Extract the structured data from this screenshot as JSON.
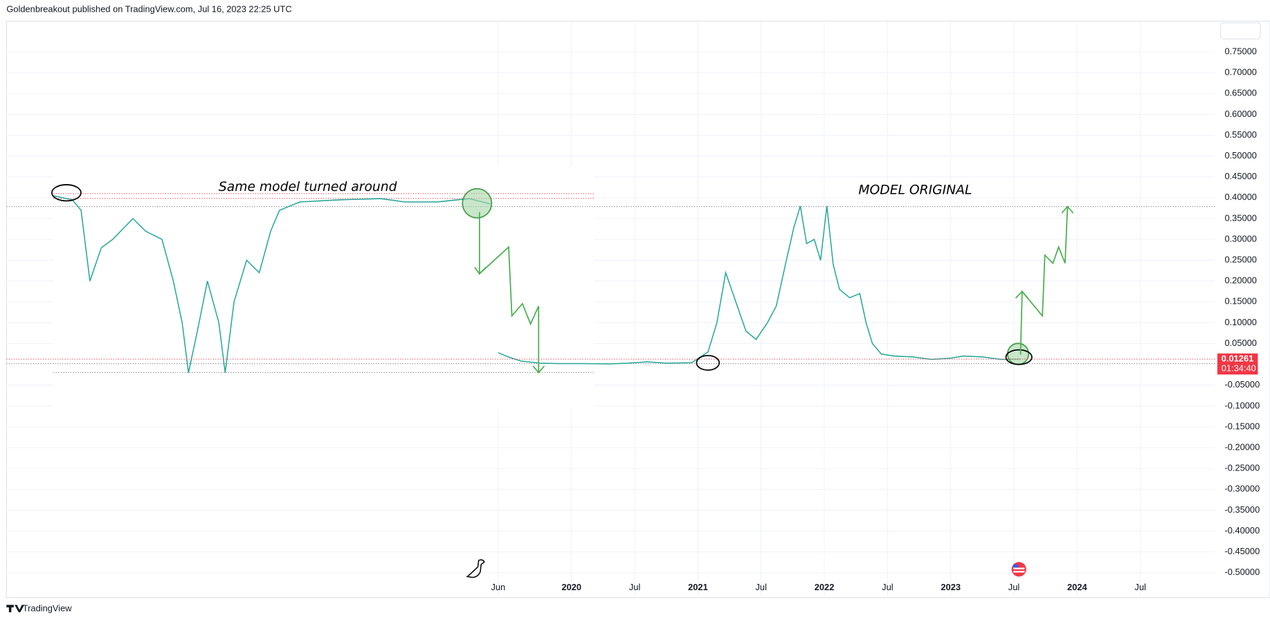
{
  "header": "Goldenbreakout published on TradingView.com, Jul 16, 2023 22:25 UTC",
  "footer": "TradingView",
  "chart_data": {
    "type": "line",
    "annotations": [
      "Same model turned around",
      "MODEL ORIGINAL"
    ],
    "last_price": 0.01261,
    "countdown": "01:34:40",
    "price_label_color": "#f23645",
    "grid": true,
    "xlim": [
      2015.53,
      2025.09
    ],
    "ylim": [
      -0.558,
      0.824
    ],
    "xticks": [
      {
        "value": 2019.42,
        "label": "Jun"
      },
      {
        "value": 2020,
        "label": "2020"
      },
      {
        "value": 2020.5,
        "label": "Jul"
      },
      {
        "value": 2021,
        "label": "2021"
      },
      {
        "value": 2021.5,
        "label": "Jul"
      },
      {
        "value": 2022,
        "label": "2022"
      },
      {
        "value": 2022.5,
        "label": "Jul"
      },
      {
        "value": 2023,
        "label": "2023"
      },
      {
        "value": 2023.5,
        "label": "Jul"
      },
      {
        "value": 2024,
        "label": "2024"
      },
      {
        "value": 2024.5,
        "label": "Jul"
      }
    ],
    "yticks": [
      {
        "value": 0.75,
        "label": "0.75000"
      },
      {
        "value": 0.7,
        "label": "0.70000"
      },
      {
        "value": 0.65,
        "label": "0.65000"
      },
      {
        "value": 0.6,
        "label": "0.60000"
      },
      {
        "value": 0.55,
        "label": "0.55000"
      },
      {
        "value": 0.5,
        "label": "0.50000"
      },
      {
        "value": 0.45,
        "label": "0.45000"
      },
      {
        "value": 0.4,
        "label": "0.40000"
      },
      {
        "value": 0.35,
        "label": "0.35000"
      },
      {
        "value": 0.3,
        "label": "0.30000"
      },
      {
        "value": 0.25,
        "label": "0.25000"
      },
      {
        "value": 0.2,
        "label": "0.20000"
      },
      {
        "value": 0.15,
        "label": "0.15000"
      },
      {
        "value": 0.1,
        "label": "0.10000"
      },
      {
        "value": 0.05,
        "label": "0.05000"
      },
      {
        "value": -0.05,
        "label": "-0.05000"
      },
      {
        "value": -0.1,
        "label": "-0.10000"
      },
      {
        "value": -0.15,
        "label": "-0.15000"
      },
      {
        "value": -0.2,
        "label": "-0.20000"
      },
      {
        "value": -0.25,
        "label": "-0.25000"
      },
      {
        "value": -0.3,
        "label": "-0.30000"
      },
      {
        "value": -0.35,
        "label": "-0.35000"
      },
      {
        "value": -0.4,
        "label": "-0.40000"
      },
      {
        "value": -0.45,
        "label": "-0.45000"
      },
      {
        "value": -0.5,
        "label": "-0.50000"
      }
    ],
    "series": [
      {
        "color": "#26a69a",
        "x": [
          2019.42,
          2019.5,
          2019.6,
          2019.75,
          2019.9,
          2020.1,
          2020.3,
          2020.45,
          2020.6,
          2020.75,
          2020.95,
          2021.08,
          2021.15,
          2021.22,
          2021.3,
          2021.38,
          2021.46,
          2021.55,
          2021.62,
          2021.7,
          2021.76,
          2021.81,
          2021.86,
          2021.92,
          2021.97,
          2022.02,
          2022.07,
          2022.12,
          2022.2,
          2022.28,
          2022.33,
          2022.38,
          2022.45,
          2022.55,
          2022.7,
          2022.85,
          2023.0,
          2023.1,
          2023.25,
          2023.4,
          2023.55
        ],
        "values": [
          0.028,
          0.018,
          0.008,
          0.003,
          0.002,
          0.002,
          0.001,
          0.003,
          0.006,
          0.003,
          0.004,
          0.03,
          0.1,
          0.22,
          0.15,
          0.08,
          0.06,
          0.1,
          0.14,
          0.25,
          0.33,
          0.38,
          0.29,
          0.3,
          0.25,
          0.38,
          0.24,
          0.18,
          0.16,
          0.17,
          0.1,
          0.05,
          0.025,
          0.02,
          0.018,
          0.012,
          0.015,
          0.02,
          0.018,
          0.012,
          0.01261
        ]
      },
      {
        "color": "#26a69a",
        "x": [
          2015.9,
          2016.05,
          2016.12,
          2016.19,
          2016.28,
          2016.37,
          2016.53,
          2016.63,
          2016.76,
          2016.85,
          2016.92,
          2016.97,
          2017.04,
          2017.12,
          2017.21,
          2017.26,
          2017.33,
          2017.43,
          2017.53,
          2017.62,
          2017.69,
          2017.85,
          2018.17,
          2018.49,
          2018.68,
          2018.94,
          2019.19,
          2019.36
        ],
        "values": [
          0.405,
          0.395,
          0.37,
          0.2,
          0.28,
          0.3,
          0.35,
          0.32,
          0.3,
          0.2,
          0.1,
          -0.02,
          0.08,
          0.2,
          0.1,
          -0.02,
          0.15,
          0.25,
          0.22,
          0.32,
          0.37,
          0.39,
          0.395,
          0.398,
          0.39,
          0.39,
          0.398,
          0.385
        ]
      }
    ]
  }
}
